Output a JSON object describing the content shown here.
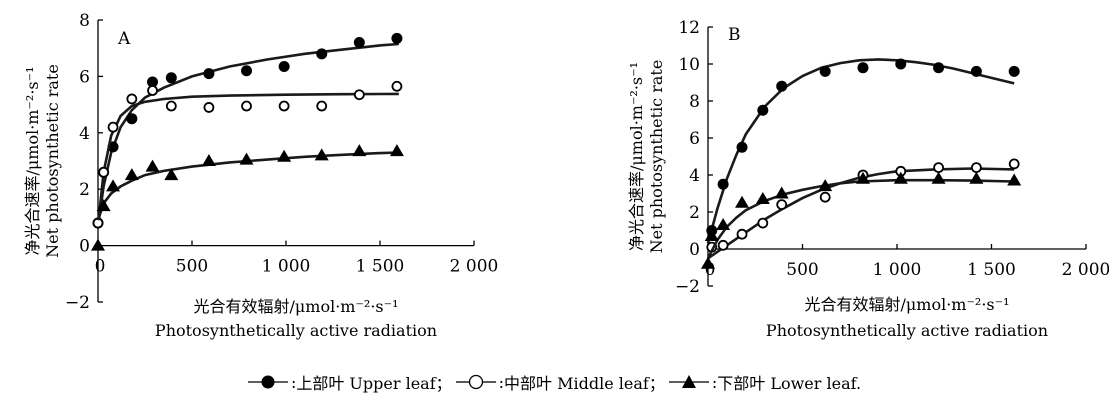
{
  "chart_data": [
    {
      "type": "scatter",
      "panel_label": "A",
      "xlabel_cn": "光合有效辐射/μmol·m⁻²·s⁻¹",
      "xlabel_en": "Photosynthetically active radiation",
      "ylabel_cn": "净光合速率/μmol·m⁻²·s⁻¹",
      "ylabel_en": "Net photosynthetic rate",
      "xlim": [
        0,
        2000
      ],
      "ylim": [
        -2,
        8
      ],
      "xticks": [
        0,
        500,
        1000,
        1500,
        2000
      ],
      "xtick_labels": [
        "0",
        "500",
        "1 000",
        "1 500",
        "2 000"
      ],
      "yticks": [
        -2,
        0,
        2,
        4,
        6,
        8
      ],
      "ytick_labels": [
        "−2",
        "0",
        "2",
        "4",
        "6",
        "8"
      ],
      "series": [
        {
          "name": "上部叶 Upper leaf",
          "marker": "filled-circle",
          "x": [
            0,
            30,
            80,
            180,
            290,
            390,
            590,
            790,
            990,
            1190,
            1390,
            1590
          ],
          "y": [
            0.8,
            2.6,
            3.5,
            4.5,
            5.8,
            5.95,
            6.1,
            6.2,
            6.35,
            6.8,
            7.2,
            7.35
          ],
          "fit_x": [
            0,
            30,
            70,
            120,
            180,
            250,
            350,
            500,
            700,
            900,
            1100,
            1300,
            1500,
            1600
          ],
          "fit_y": [
            0.7,
            2.1,
            3.3,
            4.2,
            4.8,
            5.25,
            5.6,
            6.0,
            6.35,
            6.6,
            6.8,
            6.95,
            7.1,
            7.15
          ]
        },
        {
          "name": "中部叶 Middle leaf",
          "marker": "open-circle",
          "x": [
            0,
            30,
            80,
            180,
            290,
            390,
            590,
            790,
            990,
            1190,
            1390,
            1590
          ],
          "y": [
            0.8,
            2.6,
            4.2,
            5.2,
            5.5,
            4.95,
            4.9,
            4.95,
            4.95,
            4.95,
            5.35,
            5.65
          ],
          "fit_x": [
            0,
            30,
            70,
            120,
            180,
            250,
            350,
            500,
            700,
            1000,
            1300,
            1600
          ],
          "fit_y": [
            0.7,
            2.6,
            3.9,
            4.6,
            4.95,
            5.1,
            5.2,
            5.28,
            5.32,
            5.35,
            5.37,
            5.38
          ]
        },
        {
          "name": "下部叶 Lower leaf",
          "marker": "filled-triangle",
          "x": [
            0,
            30,
            80,
            180,
            290,
            390,
            590,
            790,
            990,
            1190,
            1390,
            1590
          ],
          "y": [
            0,
            1.4,
            2.1,
            2.5,
            2.8,
            2.5,
            3.0,
            3.05,
            3.15,
            3.2,
            3.35,
            3.35
          ],
          "fit_x": [
            0,
            30,
            70,
            120,
            180,
            250,
            350,
            500,
            700,
            900,
            1100,
            1300,
            1500,
            1600
          ],
          "fit_y": [
            0.9,
            1.5,
            1.85,
            2.1,
            2.3,
            2.5,
            2.65,
            2.8,
            2.95,
            3.05,
            3.15,
            3.22,
            3.28,
            3.3
          ]
        }
      ]
    },
    {
      "type": "scatter",
      "panel_label": "B",
      "xlabel_cn": "光合有效辐射/μmol·m⁻²·s⁻¹",
      "xlabel_en": "Photosynthetically active radiation",
      "ylabel_cn": "净光合速率/μmol·m⁻²·s⁻¹",
      "ylabel_en": "Net photosynthetic rate",
      "xlim": [
        0,
        2000
      ],
      "ylim": [
        -2,
        12
      ],
      "xticks": [
        0,
        500,
        1000,
        1500,
        2000
      ],
      "xtick_labels": [
        "0",
        "500",
        "1 000",
        "1 500",
        "2 000"
      ],
      "yticks": [
        -2,
        0,
        2,
        4,
        6,
        8,
        10,
        12
      ],
      "ytick_labels": [
        "−2",
        "0",
        "2",
        "4",
        "6",
        "8",
        "10",
        "12"
      ],
      "series": [
        {
          "name": "上部叶 Upper leaf",
          "marker": "filled-circle",
          "x": [
            20,
            80,
            180,
            290,
            390,
            620,
            820,
            1020,
            1220,
            1420,
            1620
          ],
          "y": [
            1.0,
            3.5,
            5.5,
            7.5,
            8.8,
            9.6,
            9.8,
            10.0,
            9.8,
            9.6,
            9.6
          ],
          "fit_x": [
            0,
            50,
            100,
            150,
            200,
            300,
            400,
            500,
            600,
            700,
            800,
            900,
            1000,
            1100,
            1200,
            1300,
            1400,
            1500,
            1620
          ],
          "fit_y": [
            0.3,
            2.2,
            3.8,
            5.1,
            6.2,
            7.7,
            8.7,
            9.35,
            9.8,
            10.05,
            10.2,
            10.25,
            10.2,
            10.1,
            9.95,
            9.75,
            9.5,
            9.25,
            8.95
          ]
        },
        {
          "name": "中部叶 Middle leaf",
          "marker": "open-circle",
          "x": [
            20,
            80,
            180,
            290,
            390,
            620,
            820,
            1020,
            1220,
            1420,
            1620
          ],
          "y": [
            0.1,
            0.2,
            0.8,
            1.4,
            2.4,
            2.8,
            4.0,
            4.2,
            4.4,
            4.4,
            4.6
          ],
          "fit_x": [
            0,
            100,
            200,
            300,
            400,
            500,
            600,
            700,
            800,
            900,
            1000,
            1200,
            1400,
            1620
          ],
          "fit_y": [
            -0.5,
            0.2,
            0.9,
            1.6,
            2.2,
            2.75,
            3.2,
            3.55,
            3.85,
            4.05,
            4.2,
            4.3,
            4.35,
            4.3
          ]
        },
        {
          "name": "下部叶 Lower leaf",
          "marker": "filled-triangle",
          "x": [
            0,
            20,
            80,
            180,
            290,
            390,
            620,
            820,
            1020,
            1220,
            1420,
            1620
          ],
          "y": [
            -0.8,
            0.7,
            1.3,
            2.5,
            2.7,
            3.0,
            3.4,
            3.8,
            3.8,
            3.8,
            3.8,
            3.7
          ],
          "fit_x": [
            0,
            50,
            100,
            150,
            200,
            300,
            400,
            500,
            600,
            700,
            800,
            1000,
            1200,
            1400,
            1620
          ],
          "fit_y": [
            -0.5,
            0.5,
            1.2,
            1.7,
            2.1,
            2.6,
            2.95,
            3.2,
            3.4,
            3.55,
            3.65,
            3.72,
            3.72,
            3.7,
            3.65
          ]
        }
      ]
    }
  ],
  "legend": {
    "sep": "；",
    "items": [
      {
        "marker": "filled-circle",
        "text": "上部叶 Upper leaf"
      },
      {
        "marker": "open-circle",
        "text": "中部叶 Middle leaf"
      },
      {
        "marker": "filled-triangle",
        "text": "下部叶 Lower leaf."
      }
    ]
  }
}
